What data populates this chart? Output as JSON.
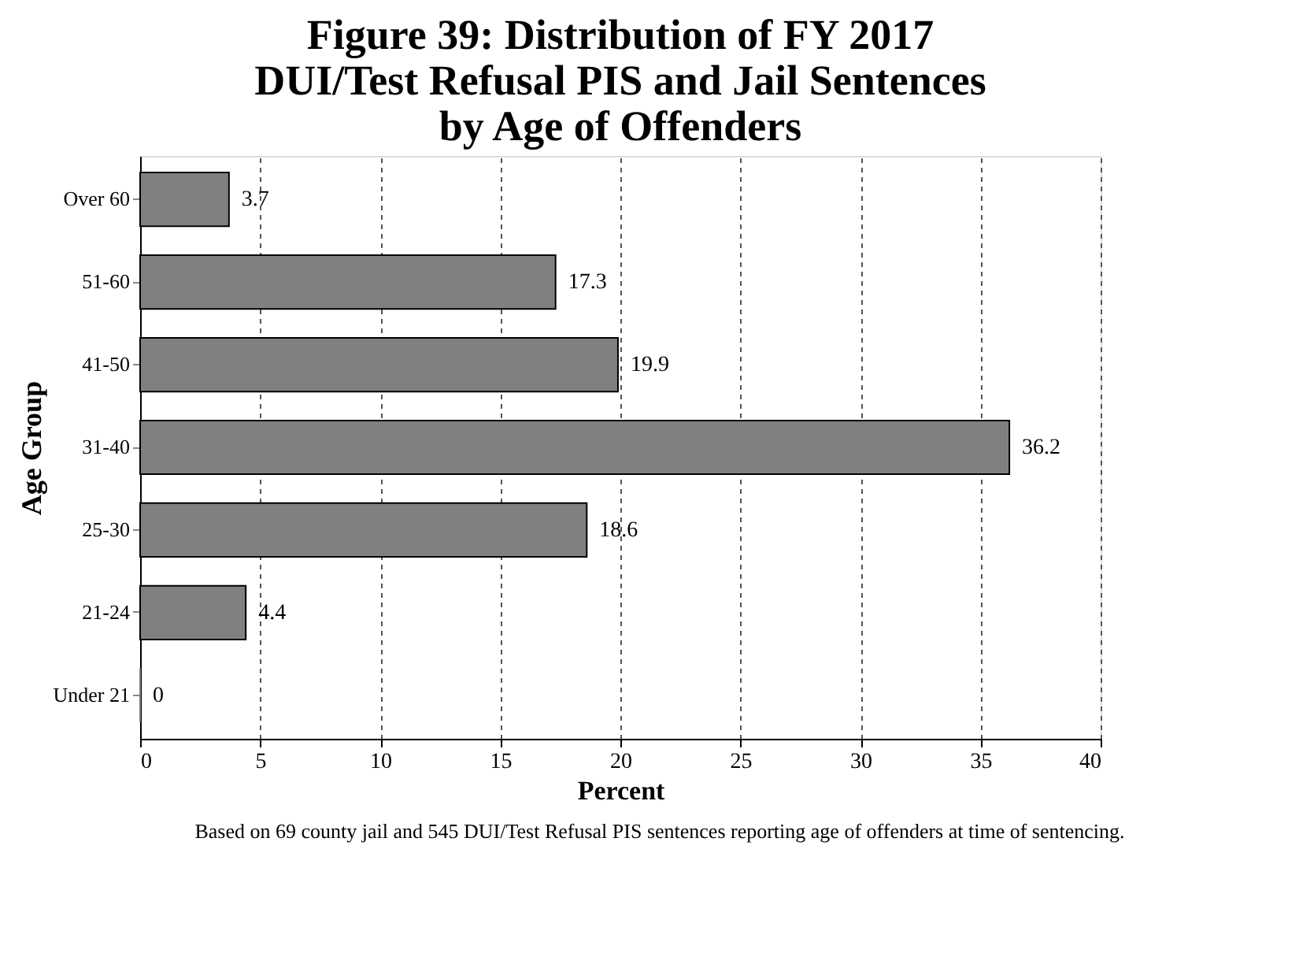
{
  "chart_data": {
    "type": "bar",
    "orientation": "horizontal",
    "title": "Figure 39: Distribution of FY 2017\nDUI/Test Refusal PIS and Jail Sentences\nby Age of Offenders",
    "xlabel": "Percent",
    "ylabel": "Age Group",
    "categories": [
      "Over 60",
      "51-60",
      "41-50",
      "31-40",
      "25-30",
      "21-24",
      "Under 21"
    ],
    "values": [
      3.7,
      17.3,
      19.9,
      36.2,
      18.6,
      4.4,
      0
    ],
    "color": "#808080",
    "xlim": [
      0,
      40
    ],
    "xticks": [
      0,
      5,
      10,
      15,
      20,
      25,
      30,
      35,
      40
    ],
    "grid": "x",
    "data_labels": true,
    "annotations": [
      "Based on 69 county jail and 545 DUI/Test Refusal PIS sentences reporting age of offenders at time of sentencing."
    ]
  }
}
